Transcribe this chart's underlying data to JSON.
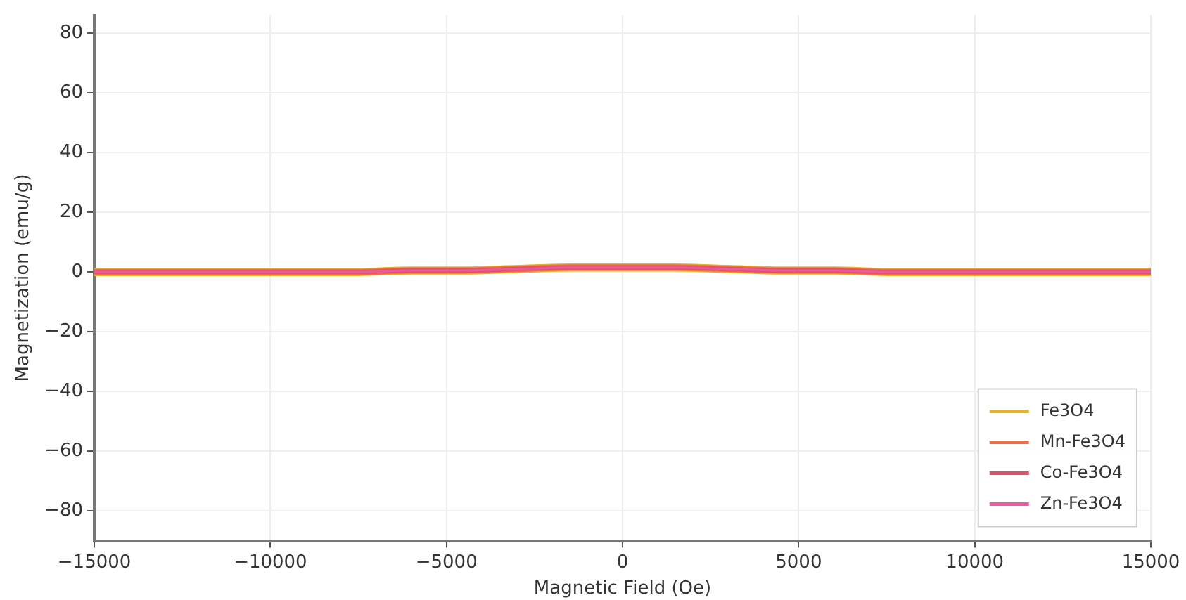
{
  "chart_data": {
    "type": "line",
    "xlabel": "Magnetic Field (Oe)",
    "ylabel": "Magnetization (emu/g)",
    "x": [
      -15000,
      -13500,
      -12000,
      -10500,
      -9000,
      -7500,
      -6000,
      -4500,
      -3000,
      -1500,
      0,
      1500,
      3000,
      4500,
      6000,
      7500,
      9000,
      10500,
      12000,
      13500,
      15000
    ],
    "series": [
      {
        "name": "Fe3O4",
        "color": "#e6b422",
        "values": [
          0,
          0,
          0,
          0,
          0,
          0,
          0.5,
          0.5,
          1,
          1.5,
          1.5,
          1.5,
          1,
          0.5,
          0.5,
          0,
          0,
          0,
          0,
          0,
          0
        ]
      },
      {
        "name": "Mn-Fe3O4",
        "color": "#f26b45",
        "values": [
          0,
          0,
          0,
          0,
          0,
          0,
          0.5,
          0.5,
          1,
          1.5,
          1.5,
          1.5,
          1,
          0.5,
          0.5,
          0,
          0,
          0,
          0,
          0,
          0
        ]
      },
      {
        "name": "Co-Fe3O4",
        "color": "#e05068",
        "values": [
          0,
          0,
          0,
          0,
          0,
          0,
          0.5,
          0.5,
          1,
          1.5,
          1.5,
          1.5,
          1,
          0.5,
          0.5,
          0,
          0,
          0,
          0,
          0,
          0
        ]
      },
      {
        "name": "Zn-Fe3O4",
        "color": "#ea5a9c",
        "values": [
          0,
          0,
          0,
          0,
          0,
          0,
          0.5,
          0.5,
          1,
          1.5,
          1.5,
          1.5,
          1,
          0.5,
          0.5,
          0,
          0,
          0,
          0,
          0,
          0
        ]
      }
    ],
    "xlim": [
      -15000,
      15000
    ],
    "xticks": [
      -15000,
      -10000,
      -5000,
      0,
      5000,
      10000,
      15000
    ],
    "ylim": [
      -90,
      86
    ],
    "yticks": [
      -80,
      -60,
      -40,
      -20,
      0,
      20,
      40,
      60,
      80
    ],
    "grid": true,
    "legend": "bottom right",
    "marker": "none",
    "line_style": "solid"
  }
}
